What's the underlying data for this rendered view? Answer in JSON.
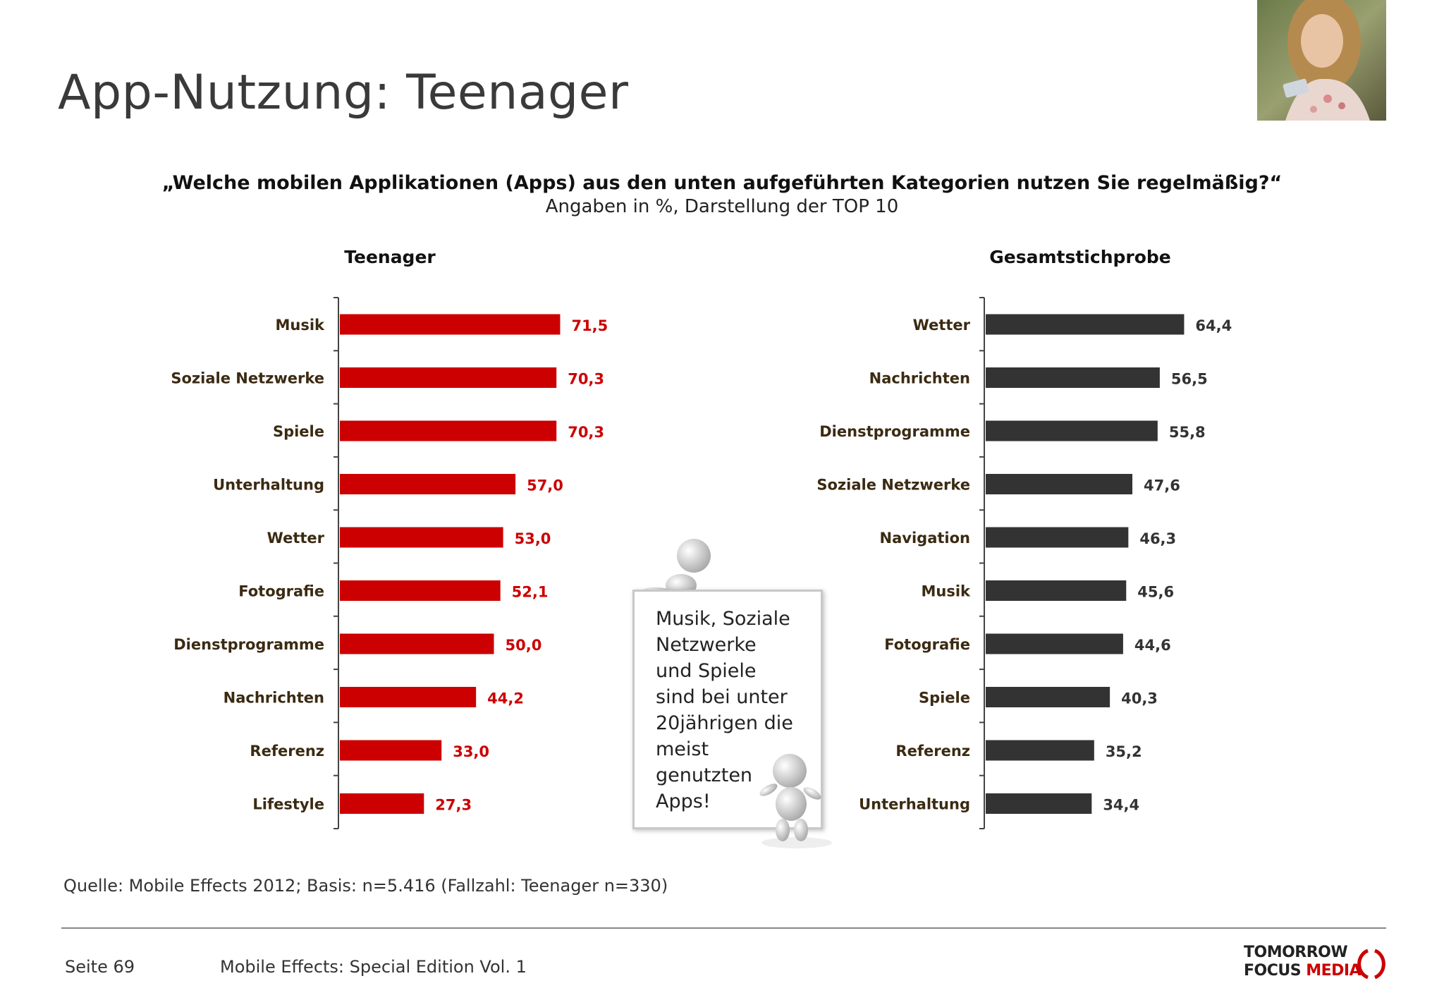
{
  "title": "App-Nutzung: Teenager",
  "question": "„Welche mobilen Applikationen (Apps) aus den unten aufgeführten Kategorien nutzen Sie regelmäßig?“",
  "subtitle": "Angaben in %, Darstellung der TOP 10",
  "note": "Musik, Soziale\nNetzwerke\nund Spiele\nsind bei unter\n20jährigen die\nmeist\ngenutzten\nApps!",
  "source": "Quelle: Mobile Effects 2012; Basis: n=5.416 (Fallzahl: Teenager n=330)",
  "footer": {
    "page": "Seite 69",
    "publication": "Mobile Effects: Special Edition Vol. 1",
    "logo_line1": "TOMORROW",
    "logo_line2_a": "FOCUS ",
    "logo_line2_b": "MEDIA"
  },
  "colors": {
    "teen": "#cc0000",
    "total": "#333333",
    "teen_label": "#cc0000",
    "total_label": "#333333",
    "category": "#3b2a12"
  },
  "chart_data": [
    {
      "type": "bar",
      "orientation": "horizontal",
      "title": "Teenager",
      "categories": [
        "Musik",
        "Soziale Netzwerke",
        "Spiele",
        "Unterhaltung",
        "Wetter",
        "Fotografie",
        "Dienstprogramme",
        "Nachrichten",
        "Referenz",
        "Lifestyle"
      ],
      "values": [
        71.5,
        70.3,
        70.3,
        57.0,
        53.0,
        52.1,
        50.0,
        44.2,
        33.0,
        27.3
      ],
      "labels": [
        "71,5",
        "70,3",
        "70,3",
        "57,0",
        "53,0",
        "52,1",
        "50,0",
        "44,2",
        "33,0",
        "27,3"
      ],
      "xlim": [
        0,
        100
      ]
    },
    {
      "type": "bar",
      "orientation": "horizontal",
      "title": "Gesamtstichprobe",
      "categories": [
        "Wetter",
        "Nachrichten",
        "Dienstprogramme",
        "Soziale Netzwerke",
        "Navigation",
        "Musik",
        "Fotografie",
        "Spiele",
        "Referenz",
        "Unterhaltung"
      ],
      "values": [
        64.4,
        56.5,
        55.8,
        47.6,
        46.3,
        45.6,
        44.6,
        40.3,
        35.2,
        34.4
      ],
      "labels": [
        "64,4",
        "56,5",
        "55,8",
        "47,6",
        "46,3",
        "45,6",
        "44,6",
        "40,3",
        "35,2",
        "34,4"
      ],
      "xlim": [
        0,
        100
      ]
    }
  ]
}
